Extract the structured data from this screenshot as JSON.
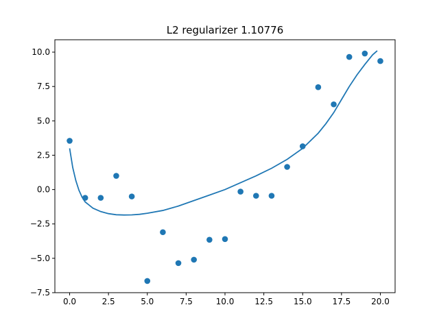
{
  "chart_data": {
    "type": "scatter",
    "title": "L2 regularizer 1.10776",
    "xlabel": "",
    "ylabel": "",
    "xlim": [
      -0.95,
      20.95
    ],
    "ylim": [
      -7.5,
      10.9
    ],
    "xticks": [
      0.0,
      2.5,
      5.0,
      7.5,
      10.0,
      12.5,
      15.0,
      17.5,
      20.0
    ],
    "xtick_labels": [
      "0.0",
      "2.5",
      "5.0",
      "7.5",
      "10.0",
      "12.5",
      "15.0",
      "17.5",
      "20.0"
    ],
    "yticks": [
      -7.5,
      -5.0,
      -2.5,
      0.0,
      2.5,
      5.0,
      7.5,
      10.0
    ],
    "ytick_labels": [
      "−7.5",
      "−5.0",
      "−2.5",
      "0.0",
      "2.5",
      "5.0",
      "7.5",
      "10.0"
    ],
    "grid": false,
    "colors": {
      "series": "#1f77b4",
      "axes": "#000000",
      "background": "#ffffff"
    },
    "series": [
      {
        "kind": "scatter",
        "x": [
          0,
          1,
          2,
          3,
          4,
          5,
          6,
          7,
          8,
          9,
          10,
          11,
          12,
          13,
          14,
          15,
          16,
          17,
          18,
          19,
          20
        ],
        "y": [
          3.55,
          -0.6,
          -0.6,
          1.0,
          -0.5,
          -6.65,
          -3.1,
          -5.35,
          -5.1,
          -3.65,
          -3.6,
          -0.15,
          -0.45,
          -0.45,
          1.65,
          3.15,
          7.45,
          6.2,
          9.65,
          9.9,
          9.35
        ]
      },
      {
        "kind": "line",
        "x": [
          0,
          0.2,
          0.4,
          0.6,
          0.8,
          1.0,
          1.5,
          2.0,
          2.5,
          3.0,
          3.5,
          4.0,
          4.5,
          5.0,
          6.0,
          7.0,
          8.0,
          9.0,
          10.0,
          11.0,
          12.0,
          13.0,
          14.0,
          15.0,
          16.0,
          16.5,
          17.0,
          17.5,
          18.0,
          18.5,
          19.0,
          19.5,
          19.8
        ],
        "y": [
          3.0,
          1.6,
          0.65,
          -0.05,
          -0.55,
          -0.9,
          -1.35,
          -1.6,
          -1.75,
          -1.83,
          -1.85,
          -1.84,
          -1.8,
          -1.72,
          -1.52,
          -1.2,
          -0.8,
          -0.4,
          0.0,
          0.5,
          1.0,
          1.55,
          2.2,
          3.0,
          4.1,
          4.8,
          5.6,
          6.55,
          7.5,
          8.35,
          9.1,
          9.8,
          10.1
        ]
      }
    ]
  }
}
